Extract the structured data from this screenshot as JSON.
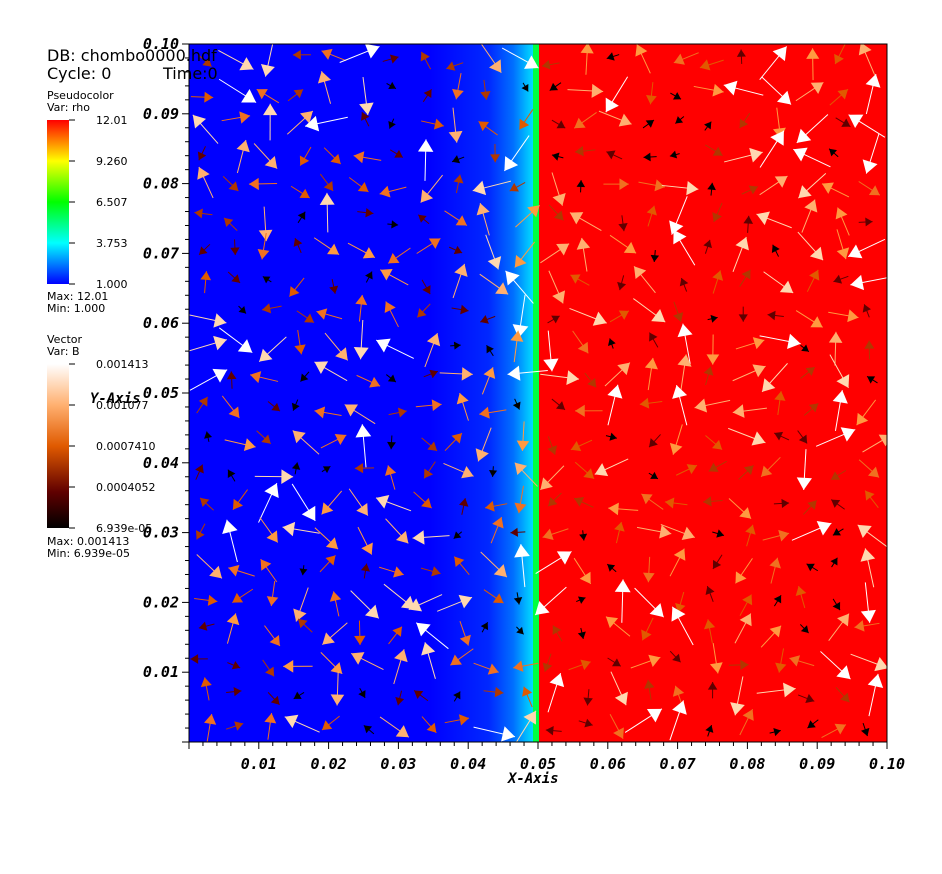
{
  "header": {
    "db": "DB: chombo0000.hdf",
    "cycle": "Cycle: 0",
    "time": "Time:0"
  },
  "legend_scalar": {
    "title": "Pseudocolor",
    "var": "Var: rho",
    "ticks": [
      "12.01",
      "9.260",
      "6.507",
      "3.753",
      "1.000"
    ],
    "max": "Max:  12.01",
    "min": "Min:  1.000",
    "colors": [
      "#ff0000",
      "#ffff00",
      "#00ff00",
      "#00ffff",
      "#0000ff"
    ]
  },
  "legend_vector": {
    "title": "Vector",
    "var": "Var: B",
    "ticks": [
      "0.001413",
      "0.001077",
      "0.0007410",
      "0.0004052",
      "6.939e-05"
    ],
    "max": "Max:  0.001413",
    "min": "Min:  6.939e-05",
    "colors": [
      "#ffffff",
      "#ff9a40",
      "#e05a00",
      "#600000",
      "#000000"
    ]
  },
  "chart_data": {
    "type": "heatmap",
    "description_field": "rho",
    "xlabel": "X-Axis",
    "ylabel": "Y-Axis",
    "xlim": [
      0.0,
      0.1
    ],
    "ylim": [
      0.0,
      0.1
    ],
    "xticks": [
      "0.01",
      "0.02",
      "0.03",
      "0.04",
      "0.05",
      "0.06",
      "0.07",
      "0.08",
      "0.09",
      "0.10"
    ],
    "yticks": [
      "0.01",
      "0.02",
      "0.03",
      "0.04",
      "0.05",
      "0.06",
      "0.07",
      "0.08",
      "0.09",
      "0.10"
    ],
    "field": {
      "interface_x": 0.05,
      "left_value": 1.0,
      "right_value": 12.01,
      "left_color": "#0000ff",
      "right_color": "#ff0000"
    },
    "vectors": {
      "var": "B",
      "magnitude_range": [
        6.939e-05,
        0.001413
      ]
    }
  }
}
